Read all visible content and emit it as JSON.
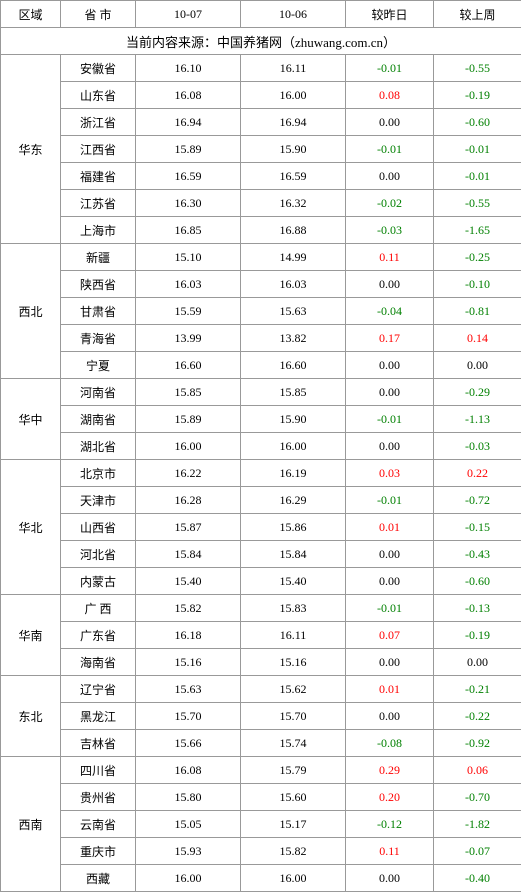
{
  "headers": [
    "区域",
    "省 市",
    "10-07",
    "10-06",
    "较昨日",
    "较上周"
  ],
  "source_line": "当前内容来源：中国养猪网（zhuwang.com.cn）",
  "colors": {
    "neg": "#008000",
    "pos": "#ff0000",
    "zero": "#000000",
    "border": "#999999"
  },
  "regions": [
    {
      "name": "华东",
      "rows": [
        {
          "prov": "安徽省",
          "d07": "16.10",
          "d06": "16.11",
          "dy": "-0.01",
          "dw": "-0.55"
        },
        {
          "prov": "山东省",
          "d07": "16.08",
          "d06": "16.00",
          "dy": "0.08",
          "dw": "-0.19"
        },
        {
          "prov": "浙江省",
          "d07": "16.94",
          "d06": "16.94",
          "dy": "0.00",
          "dw": "-0.60"
        },
        {
          "prov": "江西省",
          "d07": "15.89",
          "d06": "15.90",
          "dy": "-0.01",
          "dw": "-0.01"
        },
        {
          "prov": "福建省",
          "d07": "16.59",
          "d06": "16.59",
          "dy": "0.00",
          "dw": "-0.01"
        },
        {
          "prov": "江苏省",
          "d07": "16.30",
          "d06": "16.32",
          "dy": "-0.02",
          "dw": "-0.55"
        },
        {
          "prov": "上海市",
          "d07": "16.85",
          "d06": "16.88",
          "dy": "-0.03",
          "dw": "-1.65"
        }
      ]
    },
    {
      "name": "西北",
      "rows": [
        {
          "prov": "新疆",
          "d07": "15.10",
          "d06": "14.99",
          "dy": "0.11",
          "dw": "-0.25"
        },
        {
          "prov": "陕西省",
          "d07": "16.03",
          "d06": "16.03",
          "dy": "0.00",
          "dw": "-0.10"
        },
        {
          "prov": "甘肃省",
          "d07": "15.59",
          "d06": "15.63",
          "dy": "-0.04",
          "dw": "-0.81"
        },
        {
          "prov": "青海省",
          "d07": "13.99",
          "d06": "13.82",
          "dy": "0.17",
          "dw": "0.14"
        },
        {
          "prov": "宁夏",
          "d07": "16.60",
          "d06": "16.60",
          "dy": "0.00",
          "dw": "0.00"
        }
      ]
    },
    {
      "name": "华中",
      "rows": [
        {
          "prov": "河南省",
          "d07": "15.85",
          "d06": "15.85",
          "dy": "0.00",
          "dw": "-0.29"
        },
        {
          "prov": "湖南省",
          "d07": "15.89",
          "d06": "15.90",
          "dy": "-0.01",
          "dw": "-1.13"
        },
        {
          "prov": "湖北省",
          "d07": "16.00",
          "d06": "16.00",
          "dy": "0.00",
          "dw": "-0.03"
        }
      ]
    },
    {
      "name": "华北",
      "rows": [
        {
          "prov": "北京市",
          "d07": "16.22",
          "d06": "16.19",
          "dy": "0.03",
          "dw": "0.22"
        },
        {
          "prov": "天津市",
          "d07": "16.28",
          "d06": "16.29",
          "dy": "-0.01",
          "dw": "-0.72"
        },
        {
          "prov": "山西省",
          "d07": "15.87",
          "d06": "15.86",
          "dy": "0.01",
          "dw": "-0.15"
        },
        {
          "prov": "河北省",
          "d07": "15.84",
          "d06": "15.84",
          "dy": "0.00",
          "dw": "-0.43"
        },
        {
          "prov": "内蒙古",
          "d07": "15.40",
          "d06": "15.40",
          "dy": "0.00",
          "dw": "-0.60"
        }
      ]
    },
    {
      "name": "华南",
      "rows": [
        {
          "prov": "广 西",
          "d07": "15.82",
          "d06": "15.83",
          "dy": "-0.01",
          "dw": "-0.13"
        },
        {
          "prov": "广东省",
          "d07": "16.18",
          "d06": "16.11",
          "dy": "0.07",
          "dw": "-0.19"
        },
        {
          "prov": "海南省",
          "d07": "15.16",
          "d06": "15.16",
          "dy": "0.00",
          "dw": "0.00"
        }
      ]
    },
    {
      "name": "东北",
      "rows": [
        {
          "prov": "辽宁省",
          "d07": "15.63",
          "d06": "15.62",
          "dy": "0.01",
          "dw": "-0.21"
        },
        {
          "prov": "黑龙江",
          "d07": "15.70",
          "d06": "15.70",
          "dy": "0.00",
          "dw": "-0.22"
        },
        {
          "prov": "吉林省",
          "d07": "15.66",
          "d06": "15.74",
          "dy": "-0.08",
          "dw": "-0.92"
        }
      ]
    },
    {
      "name": "西南",
      "rows": [
        {
          "prov": "四川省",
          "d07": "16.08",
          "d06": "15.79",
          "dy": "0.29",
          "dw": "0.06"
        },
        {
          "prov": "贵州省",
          "d07": "15.80",
          "d06": "15.60",
          "dy": "0.20",
          "dw": "-0.70"
        },
        {
          "prov": "云南省",
          "d07": "15.05",
          "d06": "15.17",
          "dy": "-0.12",
          "dw": "-1.82"
        },
        {
          "prov": "重庆市",
          "d07": "15.93",
          "d06": "15.82",
          "dy": "0.11",
          "dw": "-0.07"
        },
        {
          "prov": "西藏",
          "d07": "16.00",
          "d06": "16.00",
          "dy": "0.00",
          "dw": "-0.40"
        }
      ]
    }
  ]
}
